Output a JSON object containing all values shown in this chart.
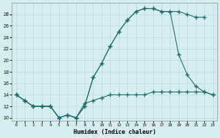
{
  "bg_color": "#d6eef0",
  "grid_color": "#b8d8d8",
  "line_color": "#1a6b6b",
  "line1_x": [
    0,
    1,
    2,
    3,
    4,
    5,
    6,
    7,
    8,
    9,
    10,
    11,
    12,
    13,
    14,
    15,
    16,
    17,
    18,
    19,
    20,
    21,
    22
  ],
  "line1_y": [
    14,
    13,
    12,
    12,
    12,
    10,
    10.5,
    10,
    12,
    17,
    19.5,
    22.5,
    25,
    27,
    28.5,
    29,
    29,
    28.5,
    28.5,
    28.5,
    28,
    27.5,
    27.5
  ],
  "line2_x": [
    0,
    1,
    2,
    3,
    4,
    5,
    6,
    7,
    8,
    9,
    10,
    11,
    12,
    13,
    14,
    15,
    16,
    17,
    18,
    19,
    20,
    21,
    22,
    23
  ],
  "line2_y": [
    14,
    13,
    12,
    12,
    12,
    10,
    10.5,
    10,
    12,
    17,
    19.5,
    22.5,
    25,
    27,
    28.5,
    29,
    29,
    28.5,
    28.5,
    21,
    17.5,
    15.5,
    14.5,
    14
  ],
  "line3_x": [
    0,
    1,
    2,
    3,
    4,
    5,
    6,
    7,
    8,
    9,
    10,
    11,
    12,
    13,
    14,
    15,
    16,
    17,
    18,
    19,
    20,
    21,
    22,
    23
  ],
  "line3_y": [
    14,
    13,
    12,
    12,
    12,
    10,
    10.5,
    10,
    12.5,
    13,
    13.5,
    14,
    14,
    14,
    14,
    14,
    14.5,
    14.5,
    14.5,
    14.5,
    14.5,
    14.5,
    14.5,
    14
  ],
  "xlabel": "Humidex (Indice chaleur)",
  "xlim": [
    -0.5,
    23.5
  ],
  "ylim": [
    9.5,
    30
  ],
  "yticks": [
    10,
    12,
    14,
    16,
    18,
    20,
    22,
    24,
    26,
    28
  ],
  "xticks": [
    0,
    1,
    2,
    3,
    4,
    5,
    6,
    7,
    8,
    9,
    10,
    11,
    12,
    13,
    14,
    15,
    16,
    17,
    18,
    19,
    20,
    21,
    22,
    23
  ]
}
